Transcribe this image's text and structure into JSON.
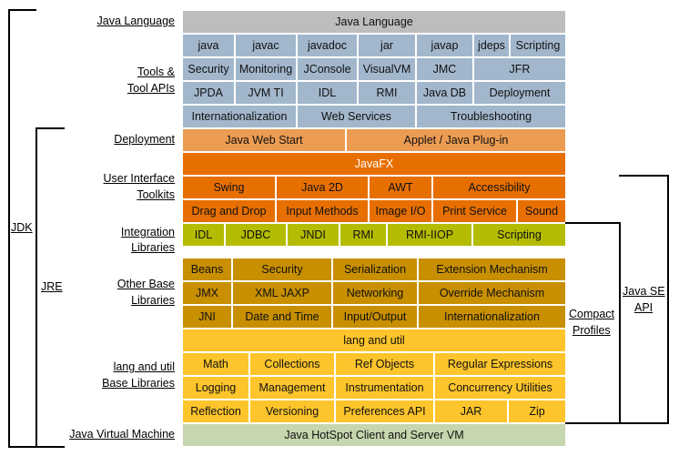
{
  "labels": {
    "java_language": "Java Language",
    "tools_1": "Tools &",
    "tools_2": "Tool APIs",
    "deployment": "Deployment",
    "ui_1": "User Interface",
    "ui_2": "Toolkits",
    "integration_1": "Integration",
    "integration_2": "Libraries",
    "other_1": "Other Base",
    "other_2": "Libraries",
    "langutil_1": "lang and util",
    "langutil_2": "Base Libraries",
    "jvm": "Java Virtual Machine",
    "jdk": "JDK",
    "jre": "JRE",
    "compact_1": "Compact",
    "compact_2": "Profiles",
    "javase_1": "Java SE",
    "javase_2": "API"
  },
  "colors": {
    "java_language": "#bdbdbd",
    "tools": "#a2b7cc",
    "deployment": "#ec9c52",
    "ui_toolkits": "#e76f00",
    "integration": "#b3bc00",
    "other_base": "#c88f00",
    "lang_util": "#fdc52b",
    "jvm": "#c6d6ae"
  },
  "rows": [
    {
      "group": "java_language",
      "cells": [
        "Java Language"
      ]
    },
    {
      "group": "tools",
      "cells": [
        "java",
        "javac",
        "javadoc",
        "jar",
        "javap",
        "jdeps",
        "Scripting"
      ]
    },
    {
      "group": "tools",
      "cells": [
        "Security",
        "Monitoring",
        "JConsole",
        "VisualVM",
        "JMC",
        "JFR"
      ]
    },
    {
      "group": "tools",
      "cells": [
        "JPDA",
        "JVM TI",
        "IDL",
        "RMI",
        "Java DB",
        "Deployment"
      ]
    },
    {
      "group": "tools",
      "cells": [
        "Internationalization",
        "Web Services",
        "Troubleshooting"
      ]
    },
    {
      "group": "deployment",
      "cells": [
        "Java Web Start",
        "Applet / Java Plug-in"
      ]
    },
    {
      "group": "ui_toolkits",
      "cells": [
        "JavaFX"
      ]
    },
    {
      "group": "ui_toolkits",
      "cells": [
        "Swing",
        "Java 2D",
        "AWT",
        "Accessibility"
      ]
    },
    {
      "group": "ui_toolkits",
      "cells": [
        "Drag and Drop",
        "Input Methods",
        "Image I/O",
        "Print Service",
        "Sound"
      ]
    },
    {
      "group": "integration",
      "cells": [
        "IDL",
        "JDBC",
        "JNDI",
        "RMI",
        "RMI-IIOP",
        "Scripting"
      ]
    },
    {
      "group": "other_base",
      "cells": [
        "Beans",
        "Security",
        "Serialization",
        "Extension Mechanism"
      ]
    },
    {
      "group": "other_base",
      "cells": [
        "JMX",
        "XML JAXP",
        "Networking",
        "Override Mechanism"
      ]
    },
    {
      "group": "other_base",
      "cells": [
        "JNI",
        "Date and Time",
        "Input/Output",
        "Internationalization"
      ]
    },
    {
      "group": "lang_util",
      "cells": [
        "lang and util"
      ]
    },
    {
      "group": "lang_util",
      "cells": [
        "Math",
        "Collections",
        "Ref Objects",
        "Regular Expressions"
      ]
    },
    {
      "group": "lang_util",
      "cells": [
        "Logging",
        "Management",
        "Instrumentation",
        "Concurrency Utilities"
      ]
    },
    {
      "group": "lang_util",
      "cells": [
        "Reflection",
        "Versioning",
        "Preferences API",
        "JAR",
        "Zip"
      ]
    },
    {
      "group": "jvm",
      "cells": [
        "Java HotSpot Client and Server VM"
      ]
    }
  ]
}
